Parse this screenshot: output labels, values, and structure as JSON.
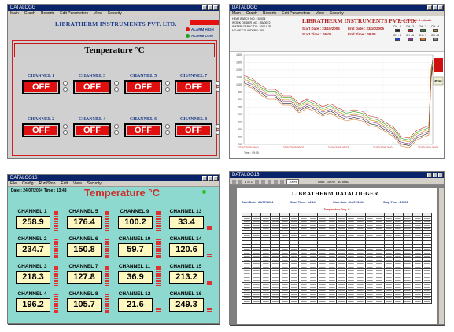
{
  "panel1": {
    "title": "DATALOGG",
    "menu": [
      "Main",
      "Graph",
      "Reports",
      "Edit Parameters",
      "View",
      "Security"
    ],
    "company": "LIBRATHERM INSTRUMENTS PVT. LTD.",
    "alarm_high": "ALARM HIGH",
    "alarm_low": "ALARM LOW",
    "heading": "Temperature °C",
    "channels": [
      {
        "label": "CHANNEL 1",
        "value": "OFF"
      },
      {
        "label": "CHANNEL 3",
        "value": "OFF"
      },
      {
        "label": "CHANNEL 5",
        "value": "OFF"
      },
      {
        "label": "CHANNEL 7",
        "value": "OFF"
      },
      {
        "label": "CHANNEL 2",
        "value": "OFF"
      },
      {
        "label": "CHANNEL 4",
        "value": "OFF"
      },
      {
        "label": "CHANNEL 6",
        "value": "OFF"
      },
      {
        "label": "CHANNEL 8",
        "value": "OFF"
      }
    ],
    "colors": {
      "off_bg": "#e01010",
      "label": "#1a3a8a",
      "alarm_high": "#e01010",
      "alarm_low": "#22a022"
    }
  },
  "panel2": {
    "title": "DATALOGG",
    "menu": [
      "Main",
      "Graph",
      "Reports",
      "Edit Parameters",
      "View",
      "Security"
    ],
    "company": "LIBRATHERM INSTRUMENTS PVT. LTD.",
    "meta": [
      "HEAT BATCH NO. :    52534",
      "WORK ORDER NO.  :    35/0572",
      "WATER CAPACITY :    1000 LTR",
      "NO OF CYLINDERS:    200"
    ],
    "start_date": "Start Date :  23/10/2005",
    "start_time": "Start Time :  09:01",
    "end_date": "End Date :  23/10/2005",
    "end_time": "End Time :  09:05",
    "log_interval": "Log Interval:  1    minute",
    "legend": [
      "CH - 1",
      "CH - 2",
      "CH - 3",
      "CH - 4",
      "CH - 5",
      "CH - 6",
      "CH - 7",
      "CH - 8"
    ],
    "legend_colors": [
      "#222222",
      "#d02020",
      "#22a022",
      "#c0a000",
      "#2040c0",
      "#8a3a8a",
      "#d87020",
      "#808080"
    ],
    "print_label": "Print",
    "y_ticks": [
      "1400",
      "1300",
      "1200",
      "1100",
      "1000",
      "900",
      "800",
      "700",
      "600",
      "500",
      "400",
      "300",
      "200"
    ],
    "x_ticks": [
      "23/10/2005 09:01",
      "23/10/2005 09:02",
      "23/10/2005 09:03",
      "23/10/2005 09:04",
      "23/10/2005 09:05"
    ],
    "x_axis_note": "Time : 09:05"
  },
  "panel3": {
    "title": "DATALOG16",
    "menu": [
      "File",
      "Config",
      "Run/Stop",
      "Edit",
      "View",
      "Security"
    ],
    "date": "Date : 24/07/2004   Time : 13:48",
    "heading": "Temperature °C",
    "channels": [
      {
        "label": "CHANNEL 1",
        "value": "258.9",
        "bar": "full"
      },
      {
        "label": "CHANNEL 5",
        "value": "176.4",
        "bar": "full"
      },
      {
        "label": "CHANNEL 9",
        "value": "100.2",
        "bar": "full"
      },
      {
        "label": "CHANNEL 13",
        "value": "33.4",
        "bar": "short"
      },
      {
        "label": "CHANNEL 2",
        "value": "234.7",
        "bar": "full"
      },
      {
        "label": "CHANNEL 6",
        "value": "150.8",
        "bar": "full"
      },
      {
        "label": "CHANNEL 10",
        "value": "59.7",
        "bar": "full"
      },
      {
        "label": "CHANNEL 14",
        "value": "120.6",
        "bar": "short"
      },
      {
        "label": "CHANNEL 3",
        "value": "218.3",
        "bar": "full"
      },
      {
        "label": "CHANNEL 7",
        "value": "127.8",
        "bar": "full"
      },
      {
        "label": "CHANNEL 11",
        "value": "36.9",
        "bar": "full"
      },
      {
        "label": "CHANNEL 15",
        "value": "213.2",
        "bar": "short"
      },
      {
        "label": "CHANNEL 4",
        "value": "196.2",
        "bar": "full"
      },
      {
        "label": "CHANNEL 8",
        "value": "105.7",
        "bar": "full"
      },
      {
        "label": "CHANNEL 12",
        "value": "21.6",
        "bar": "short"
      },
      {
        "label": "CHANNEL 16",
        "value": "249.3",
        "bar": "short"
      }
    ]
  },
  "panel4": {
    "title": "DATALOG16",
    "toolbar": [
      "1 of 1",
      "100%",
      "Total:",
      "100%",
      "50 of 50"
    ],
    "heading": "LIBRATHERM DATALOGGER",
    "start_date": "Start Date : 24/07/2004",
    "start_time": "Start Time : 14:14",
    "stop_date": "Stop Date : 24/07/2004",
    "stop_time": "Stop Time : 15:03",
    "table_title": "Temperature Deg. C",
    "rows_shown": 26
  }
}
